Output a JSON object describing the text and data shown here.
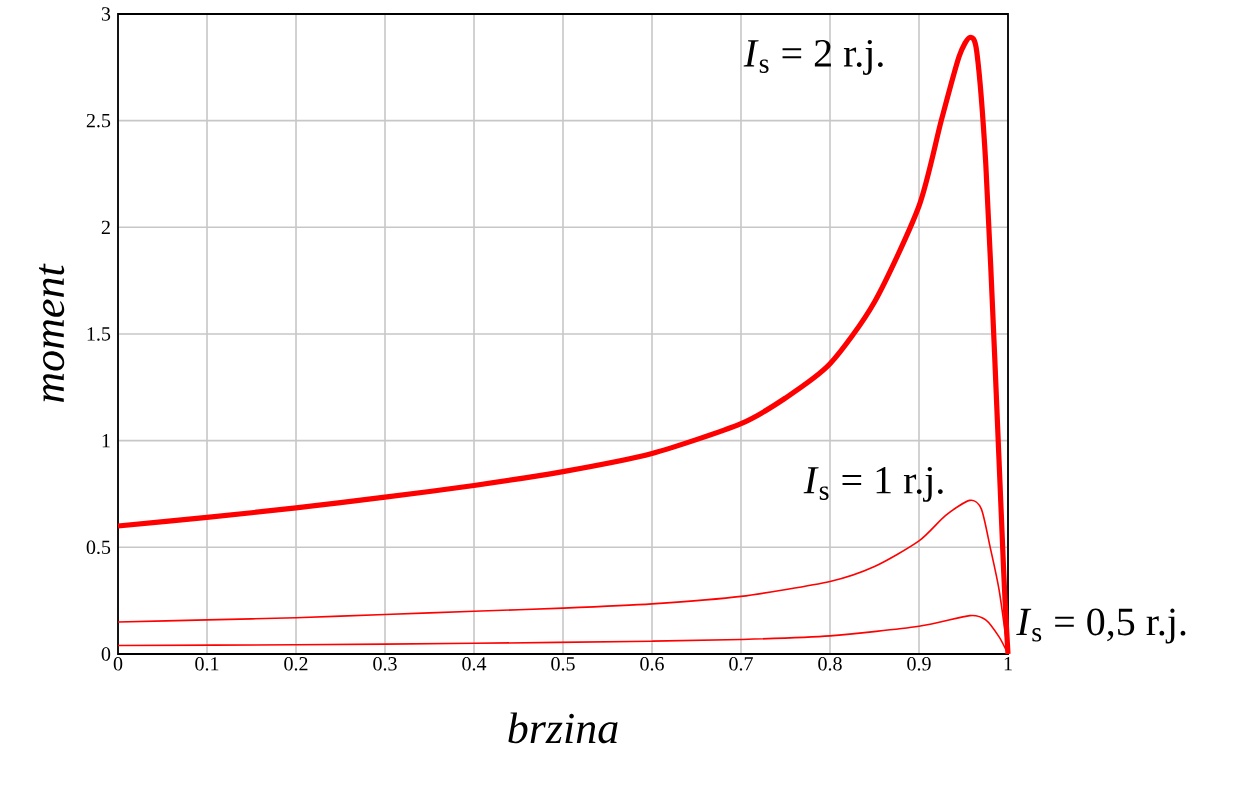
{
  "chart_data": {
    "type": "line",
    "xlabel": "brzina",
    "ylabel": "moment",
    "xlim": [
      0,
      1
    ],
    "ylim": [
      0,
      3
    ],
    "xticks": [
      0,
      0.1,
      0.2,
      0.3,
      0.4,
      0.5,
      0.6,
      0.7,
      0.8,
      0.9,
      1
    ],
    "yticks": [
      0,
      0.5,
      1,
      1.5,
      2,
      2.5,
      3
    ],
    "grid": true,
    "marker": "none",
    "line_style": "solid",
    "series": [
      {
        "color": "#ff0000",
        "x": [
          0,
          0.1,
          0.2,
          0.3,
          0.4,
          0.5,
          0.6,
          0.7,
          0.75,
          0.8,
          0.85,
          0.9,
          0.925,
          0.945,
          0.957,
          0.965,
          0.975,
          0.985,
          0.995,
          1
        ],
        "values": [
          0.6,
          0.64,
          0.685,
          0.735,
          0.79,
          0.855,
          0.94,
          1.08,
          1.2,
          1.36,
          1.65,
          2.1,
          2.5,
          2.8,
          2.89,
          2.82,
          2.3,
          1.4,
          0.4,
          0
        ]
      },
      {
        "color": "#ff0000",
        "x": [
          0,
          0.1,
          0.2,
          0.3,
          0.4,
          0.5,
          0.6,
          0.7,
          0.8,
          0.85,
          0.9,
          0.93,
          0.957,
          0.97,
          0.98,
          0.99,
          1
        ],
        "values": [
          0.15,
          0.16,
          0.17,
          0.185,
          0.2,
          0.215,
          0.235,
          0.27,
          0.34,
          0.41,
          0.53,
          0.65,
          0.72,
          0.68,
          0.5,
          0.3,
          0
        ]
      },
      {
        "color": "#ff0000",
        "x": [
          0,
          0.2,
          0.4,
          0.6,
          0.7,
          0.8,
          0.9,
          0.957,
          0.975,
          0.99,
          1
        ],
        "values": [
          0.04,
          0.043,
          0.05,
          0.06,
          0.068,
          0.085,
          0.13,
          0.18,
          0.16,
          0.08,
          0
        ]
      }
    ],
    "annotations": [
      "*I*$_{s}$ = 2 r.j.",
      "*I*$_{s}$ = 1 r.j.",
      "*I*$_{s}$ = 0,5 r.j."
    ]
  }
}
